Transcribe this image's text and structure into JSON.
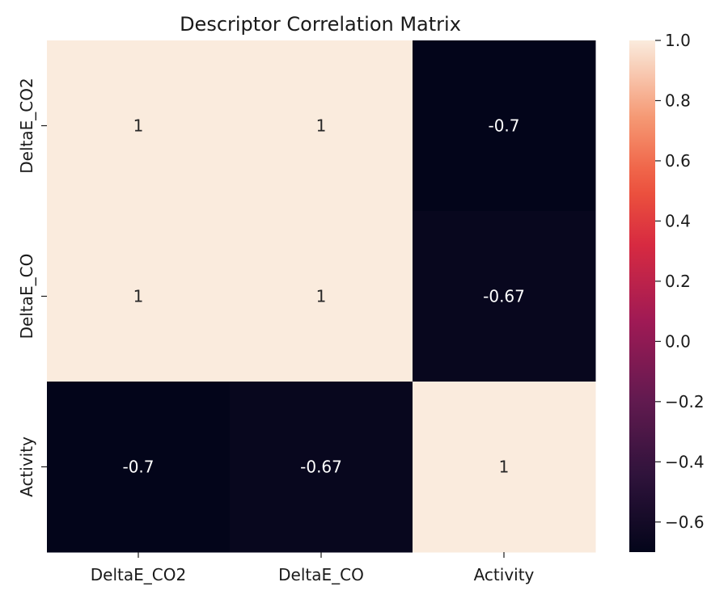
{
  "chart_data": {
    "type": "heatmap",
    "title": "Descriptor Correlation Matrix",
    "row_labels": [
      "DeltaE_CO2",
      "DeltaE_CO",
      "Activity"
    ],
    "col_labels": [
      "DeltaE_CO2",
      "DeltaE_CO",
      "Activity"
    ],
    "values": [
      [
        1.0,
        1.0,
        -0.7
      ],
      [
        1.0,
        1.0,
        -0.67
      ],
      [
        -0.7,
        -0.67,
        1.0
      ]
    ],
    "annotations": [
      [
        "1",
        "1",
        "-0.7"
      ],
      [
        "1",
        "1",
        "-0.67"
      ],
      [
        "-0.7",
        "-0.67",
        "1"
      ]
    ],
    "colormap": "rocket",
    "vmin": -0.7,
    "vmax": 1.0,
    "colorbar_ticks": [
      1.0,
      0.8,
      0.6,
      0.4,
      0.2,
      0.0,
      -0.2,
      -0.4,
      -0.6
    ],
    "colorbar_tick_labels": [
      "1.0",
      "0.8",
      "0.6",
      "0.4",
      "0.2",
      "0.0",
      "−0.2",
      "−0.4",
      "−0.6"
    ]
  }
}
